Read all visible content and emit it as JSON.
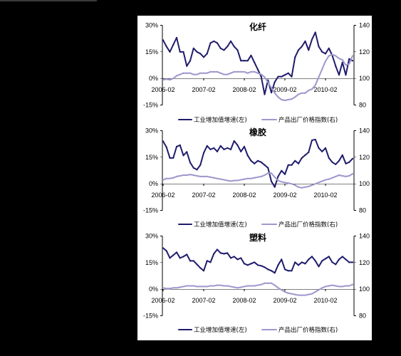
{
  "chart_data": [
    {
      "type": "line",
      "title": "化纤",
      "x": [
        "2006-02",
        "2006-03",
        "2006-04",
        "2006-05",
        "2006-06",
        "2006-07",
        "2006-08",
        "2006-09",
        "2006-10",
        "2006-11",
        "2006-12",
        "2007-01",
        "2007-02",
        "2007-03",
        "2007-04",
        "2007-05",
        "2007-06",
        "2007-07",
        "2007-08",
        "2007-09",
        "2007-10",
        "2007-11",
        "2007-12",
        "2008-01",
        "2008-02",
        "2008-03",
        "2008-04",
        "2008-05",
        "2008-06",
        "2008-07",
        "2008-08",
        "2008-09",
        "2008-10",
        "2008-11",
        "2008-12",
        "2009-01",
        "2009-02",
        "2009-03",
        "2009-04",
        "2009-05",
        "2009-06",
        "2009-07",
        "2009-08",
        "2009-09",
        "2009-10",
        "2009-11",
        "2009-12",
        "2010-01",
        "2010-02",
        "2010-03",
        "2010-04",
        "2010-05",
        "2010-06",
        "2010-07",
        "2010-08",
        "2010-09",
        "2010-10"
      ],
      "x_ticks": [
        "2006-02",
        "2007-02",
        "2008-02",
        "2009-02",
        "2010-02"
      ],
      "y_ticks": [
        "30%",
        "15%",
        "0%",
        "-15%"
      ],
      "y2_ticks": [
        "140",
        "120",
        "100",
        "80"
      ],
      "ylim": [
        -15,
        30
      ],
      "y2lim": [
        80,
        140
      ],
      "grid": false,
      "legend": "bottom",
      "series": [
        {
          "name": "工业增加值增速(左)",
          "axis": "left",
          "color": "#1f1c6c",
          "values": [
            21.6,
            18,
            15,
            19,
            23,
            15,
            15,
            7,
            10,
            17,
            15,
            14,
            12,
            14,
            20,
            21,
            20,
            17,
            16,
            18,
            21,
            18,
            16,
            10,
            10,
            10,
            13,
            9,
            5,
            1,
            -9,
            -1,
            -8,
            -2,
            1,
            1,
            2,
            3,
            1,
            12,
            16,
            18,
            21,
            16,
            22,
            26,
            18,
            15,
            14,
            17,
            13,
            7,
            2,
            9,
            2,
            11,
            10
          ]
        },
        {
          "name": "产品出厂价格指数(右)",
          "axis": "right",
          "color": "#9d98cc",
          "values": [
            99,
            99.5,
            99,
            100,
            102,
            103,
            104,
            104,
            104,
            103,
            103,
            104,
            104,
            104,
            105,
            105,
            105,
            104,
            103,
            103,
            104,
            105,
            105,
            105,
            105,
            104,
            105,
            105,
            104,
            103,
            101,
            97,
            93,
            89,
            86,
            84,
            83.5,
            84,
            84.5,
            86,
            88,
            89,
            89,
            91,
            92,
            95,
            101,
            107,
            113,
            117,
            118,
            117,
            115,
            114,
            110,
            111,
            117
          ]
        }
      ]
    },
    {
      "type": "line",
      "title": "橡胶",
      "x": [
        "2006-02",
        "2006-03",
        "2006-04",
        "2006-05",
        "2006-06",
        "2006-07",
        "2006-08",
        "2006-09",
        "2006-10",
        "2006-11",
        "2006-12",
        "2007-01",
        "2007-02",
        "2007-03",
        "2007-04",
        "2007-05",
        "2007-06",
        "2007-07",
        "2007-08",
        "2007-09",
        "2007-10",
        "2007-11",
        "2007-12",
        "2008-01",
        "2008-02",
        "2008-03",
        "2008-04",
        "2008-05",
        "2008-06",
        "2008-07",
        "2008-08",
        "2008-09",
        "2008-10",
        "2008-11",
        "2008-12",
        "2009-01",
        "2009-02",
        "2009-03",
        "2009-04",
        "2009-05",
        "2009-06",
        "2009-07",
        "2009-08",
        "2009-09",
        "2009-10",
        "2009-11",
        "2009-12",
        "2010-01",
        "2010-02",
        "2010-03",
        "2010-04",
        "2010-05",
        "2010-06",
        "2010-07",
        "2010-08",
        "2010-09",
        "2010-10"
      ],
      "x_ticks": [
        "2006-02",
        "2007-02",
        "2008-02",
        "2009-02",
        "2010-02"
      ],
      "y_ticks": [
        "30%",
        "15%",
        "0%",
        "-15%"
      ],
      "y2_ticks": [
        "140",
        "120",
        "100",
        "80"
      ],
      "ylim": [
        -15,
        30
      ],
      "y2lim": [
        80,
        140
      ],
      "grid": false,
      "legend": "bottom",
      "series": [
        {
          "name": "工业增加值增速(左)",
          "axis": "left",
          "color": "#1f1c6c",
          "values": [
            24,
            20.6,
            14.6,
            14.6,
            21,
            21.8,
            16,
            18,
            12,
            9,
            8,
            10.6,
            17.4,
            21.4,
            19.4,
            20.2,
            18.2,
            21.4,
            19.4,
            20.2,
            19.4,
            24.2,
            21.8,
            18.2,
            21,
            16,
            13,
            11.4,
            13,
            12.2,
            10.6,
            9,
            1.4,
            -1.8,
            4.2,
            7.4,
            5.4,
            10.6,
            10.6,
            13,
            11.4,
            14.6,
            16.2,
            17.8,
            24.6,
            25,
            20.2,
            18.2,
            20.2,
            14.6,
            12.2,
            11,
            13,
            16.2,
            11.4,
            12.2,
            14.2
          ]
        },
        {
          "name": "产品出厂价格指数(右)",
          "axis": "right",
          "color": "#9d98cc",
          "values": [
            103,
            104,
            104,
            104.5,
            105.5,
            106,
            106.5,
            106.5,
            107,
            106.5,
            106,
            105.5,
            105.5,
            105.5,
            105,
            104.5,
            104,
            103.5,
            103,
            102.5,
            102,
            102.5,
            102.5,
            103,
            103.5,
            104,
            104,
            104.5,
            105,
            105.5,
            106.5,
            108,
            108,
            105,
            102.5,
            101.5,
            101,
            100.5,
            100,
            99,
            97.5,
            97,
            97.5,
            98,
            99,
            100,
            101,
            102,
            103,
            103.5,
            104.5,
            105.5,
            106.5,
            106,
            105.5,
            106,
            107.5
          ]
        }
      ]
    },
    {
      "type": "line",
      "title": "塑料",
      "x": [
        "2006-02",
        "2006-03",
        "2006-04",
        "2006-05",
        "2006-06",
        "2006-07",
        "2006-08",
        "2006-09",
        "2006-10",
        "2006-11",
        "2006-12",
        "2007-01",
        "2007-02",
        "2007-03",
        "2007-04",
        "2007-05",
        "2007-06",
        "2007-07",
        "2007-08",
        "2007-09",
        "2007-10",
        "2007-11",
        "2007-12",
        "2008-01",
        "2008-02",
        "2008-03",
        "2008-04",
        "2008-05",
        "2008-06",
        "2008-07",
        "2008-08",
        "2008-09",
        "2008-10",
        "2008-11",
        "2008-12",
        "2009-01",
        "2009-02",
        "2009-03",
        "2009-04",
        "2009-05",
        "2009-06",
        "2009-07",
        "2009-08",
        "2009-09",
        "2009-10",
        "2009-11",
        "2009-12",
        "2010-01",
        "2010-02",
        "2010-03",
        "2010-04",
        "2010-05",
        "2010-06",
        "2010-07",
        "2010-08",
        "2010-09",
        "2010-10"
      ],
      "x_ticks": [
        "2006-02",
        "2007-02",
        "2008-02",
        "2009-02",
        "2010-02"
      ],
      "y_ticks": [
        "30%",
        "15%",
        "0%",
        "-15%"
      ],
      "y2_ticks": [
        "140",
        "120",
        "100",
        "80"
      ],
      "ylim": [
        -15,
        30
      ],
      "y2lim": [
        80,
        140
      ],
      "grid": false,
      "legend": "bottom",
      "series": [
        {
          "name": "工业增加值增速(左)",
          "axis": "left",
          "color": "#1f1c6c",
          "values": [
            23.2,
            21.6,
            17.6,
            19.2,
            20.8,
            17.6,
            18.4,
            19.6,
            16,
            16,
            14,
            12,
            10.4,
            16,
            15.2,
            20,
            22.4,
            20.4,
            20,
            20.4,
            17.6,
            18.4,
            16.8,
            17.6,
            14.4,
            13.6,
            14.4,
            15.2,
            13.6,
            13.2,
            12.4,
            11.2,
            10.4,
            9.2,
            13.6,
            16.8,
            11.2,
            10.4,
            10.4,
            15.2,
            13.6,
            15.2,
            14.4,
            16.8,
            18.4,
            16,
            12.8,
            16,
            17.2,
            18.4,
            15.2,
            14,
            16.8,
            18.4,
            16.8,
            15.2,
            15.2
          ]
        },
        {
          "name": "产品出厂价格指数(右)",
          "axis": "right",
          "color": "#9d98cc",
          "values": [
            101,
            100.5,
            100.5,
            101,
            101,
            101.5,
            102,
            102.5,
            102.5,
            102.5,
            102,
            102,
            102,
            102,
            102.5,
            102.5,
            103,
            103,
            102.5,
            102.5,
            102,
            101.5,
            101,
            101.5,
            102,
            102.5,
            102.5,
            102.5,
            103,
            103.5,
            104.5,
            104.5,
            104.5,
            103,
            101,
            99.5,
            98,
            97,
            96.5,
            96,
            95.5,
            95.5,
            95.5,
            96,
            96.5,
            98,
            99.5,
            101,
            102,
            102.5,
            103,
            102.5,
            102,
            102,
            102.5,
            102.5,
            103.5
          ]
        }
      ]
    }
  ]
}
